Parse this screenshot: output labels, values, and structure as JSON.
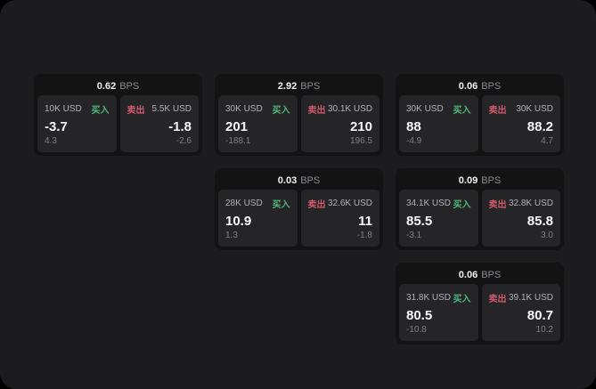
{
  "window": {
    "bg": "#1c1c1e",
    "outer_bg": "#000000",
    "card_bg": "#131314",
    "panel_bg": "#252528"
  },
  "colors": {
    "buy_green": "#4db77a",
    "sell_red": "#d25a6c",
    "value_white": "#fafafa",
    "label_gray": "#b2b2b7",
    "muted_gray": "#7f7f85",
    "bps_unit_gray": "#8a8a90"
  },
  "labels": {
    "bps_unit": "BPS",
    "buy": "买入",
    "sell": "卖出"
  },
  "cards": [
    {
      "bps": "0.62",
      "buy": {
        "size": "10K USD",
        "value": "-3.7",
        "delta": "4.3"
      },
      "sell": {
        "size": "5.5K USD",
        "value": "-1.8",
        "delta": "-2.6"
      }
    },
    {
      "bps": "2.92",
      "buy": {
        "size": "30K USD",
        "value": "201",
        "delta": "-188.1"
      },
      "sell": {
        "size": "30.1K USD",
        "value": "210",
        "delta": "196.5"
      }
    },
    {
      "bps": "0.06",
      "buy": {
        "size": "30K USD",
        "value": "88",
        "delta": "-4.9"
      },
      "sell": {
        "size": "30K USD",
        "value": "88.2",
        "delta": "4.7"
      }
    },
    {
      "bps": "0.03",
      "buy": {
        "size": "28K USD",
        "value": "10.9",
        "delta": "1.3"
      },
      "sell": {
        "size": "32.6K USD",
        "value": "11",
        "delta": "-1.8"
      }
    },
    {
      "bps": "0.09",
      "buy": {
        "size": "34.1K USD",
        "value": "85.5",
        "delta": "-3.1"
      },
      "sell": {
        "size": "32.8K USD",
        "value": "85.8",
        "delta": "3.0"
      }
    },
    {
      "bps": "0.06",
      "buy": {
        "size": "31.8K USD",
        "value": "80.5",
        "delta": "-10.8"
      },
      "sell": {
        "size": "39.1K USD",
        "value": "80.7",
        "delta": "10.2"
      }
    }
  ]
}
